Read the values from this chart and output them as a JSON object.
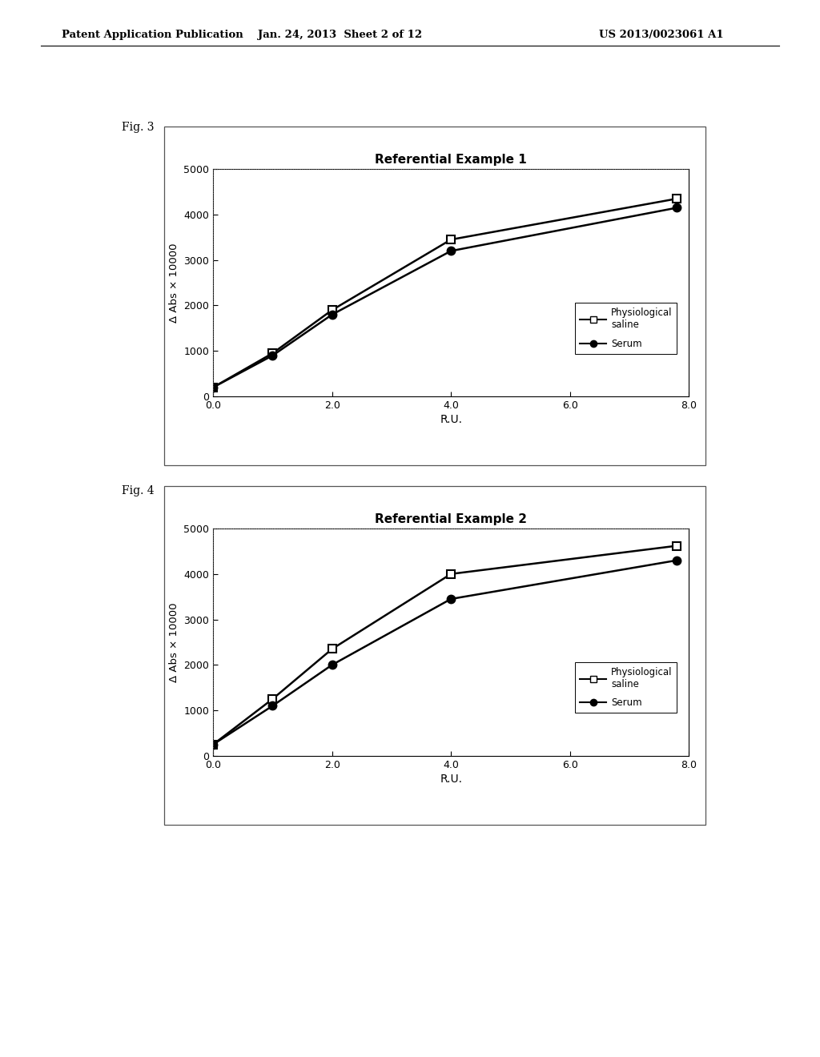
{
  "fig3": {
    "title": "Referential Example 1",
    "x": [
      0.0,
      1.0,
      2.0,
      4.0,
      7.8
    ],
    "saline": [
      200,
      950,
      1900,
      3450,
      4350
    ],
    "serum": [
      200,
      900,
      1800,
      3200,
      4150
    ],
    "xlabel": "R.U.",
    "ylabel": "Δ Abs × 10000",
    "xlim": [
      0.0,
      8.0
    ],
    "ylim": [
      0,
      5000
    ],
    "xticks": [
      0.0,
      2.0,
      4.0,
      6.0,
      8.0
    ],
    "yticks": [
      0,
      1000,
      2000,
      3000,
      4000,
      5000
    ]
  },
  "fig4": {
    "title": "Referential Example 2",
    "x": [
      0.0,
      1.0,
      2.0,
      4.0,
      7.8
    ],
    "saline": [
      250,
      1250,
      2350,
      4000,
      4620
    ],
    "serum": [
      250,
      1100,
      2000,
      3450,
      4300
    ],
    "xlabel": "R.U.",
    "ylabel": "Δ Abs × 10000",
    "xlim": [
      0.0,
      8.0
    ],
    "ylim": [
      0,
      5000
    ],
    "xticks": [
      0.0,
      2.0,
      4.0,
      6.0,
      8.0
    ],
    "yticks": [
      0,
      1000,
      2000,
      3000,
      4000,
      5000
    ]
  },
  "header_left": "Patent Application Publication",
  "header_center": "Jan. 24, 2013  Sheet 2 of 12",
  "header_right": "US 2013/0023061 A1",
  "fig3_label": "Fig. 3",
  "fig4_label": "Fig. 4",
  "legend_saline": "Physiological\nsaline",
  "legend_serum": "Serum",
  "bg_color": "#ffffff"
}
